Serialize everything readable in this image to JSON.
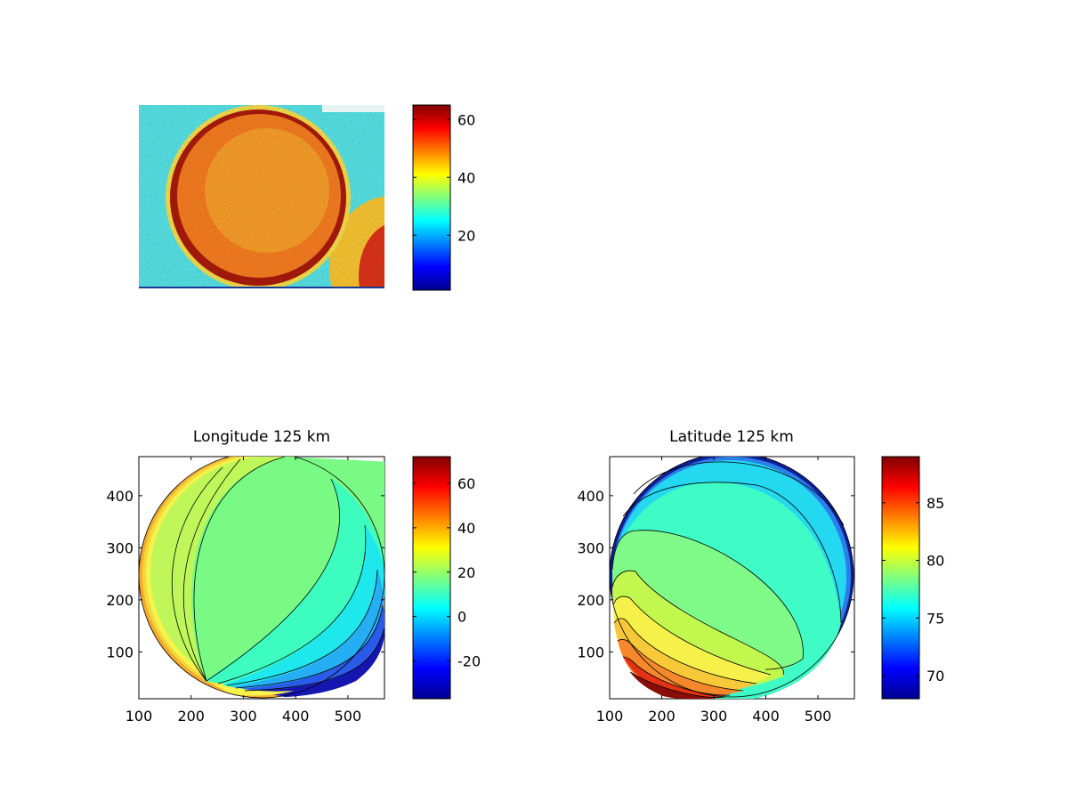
{
  "figure": {
    "background": "#ffffff",
    "colormap": "jet",
    "contour_color": "#000000"
  },
  "chart_data": [
    {
      "id": "image-panel",
      "type": "heatmap",
      "title": "",
      "header_text": "",
      "colorbar": {
        "range": [
          1,
          65
        ],
        "ticks": [
          20,
          40,
          60
        ]
      },
      "content": "false-color image of a bright disk on a noisy background"
    },
    {
      "id": "longitude-panel",
      "type": "contour",
      "title": "Longitude 125 km",
      "x_ticks": [
        100,
        200,
        300,
        400,
        500
      ],
      "y_ticks": [
        100,
        200,
        300,
        400
      ],
      "xlim": [
        100,
        570
      ],
      "ylim": [
        10,
        475
      ],
      "colorbar": {
        "range": [
          -37,
          72
        ],
        "ticks": [
          -20,
          0,
          20,
          40,
          60
        ]
      },
      "contour_levels": [
        -30,
        -20,
        -10,
        0,
        10,
        20,
        30,
        40,
        50,
        60
      ]
    },
    {
      "id": "latitude-panel",
      "type": "contour",
      "title": "Latitude 125 km",
      "x_ticks": [
        100,
        200,
        300,
        400,
        500
      ],
      "y_ticks": [
        100,
        200,
        300,
        400
      ],
      "xlim": [
        100,
        570
      ],
      "ylim": [
        10,
        475
      ],
      "colorbar": {
        "range": [
          68,
          89
        ],
        "ticks": [
          70,
          75,
          80,
          85
        ]
      },
      "contour_levels": [
        70,
        72,
        74,
        76,
        78,
        80,
        82,
        84,
        86,
        88
      ]
    }
  ]
}
